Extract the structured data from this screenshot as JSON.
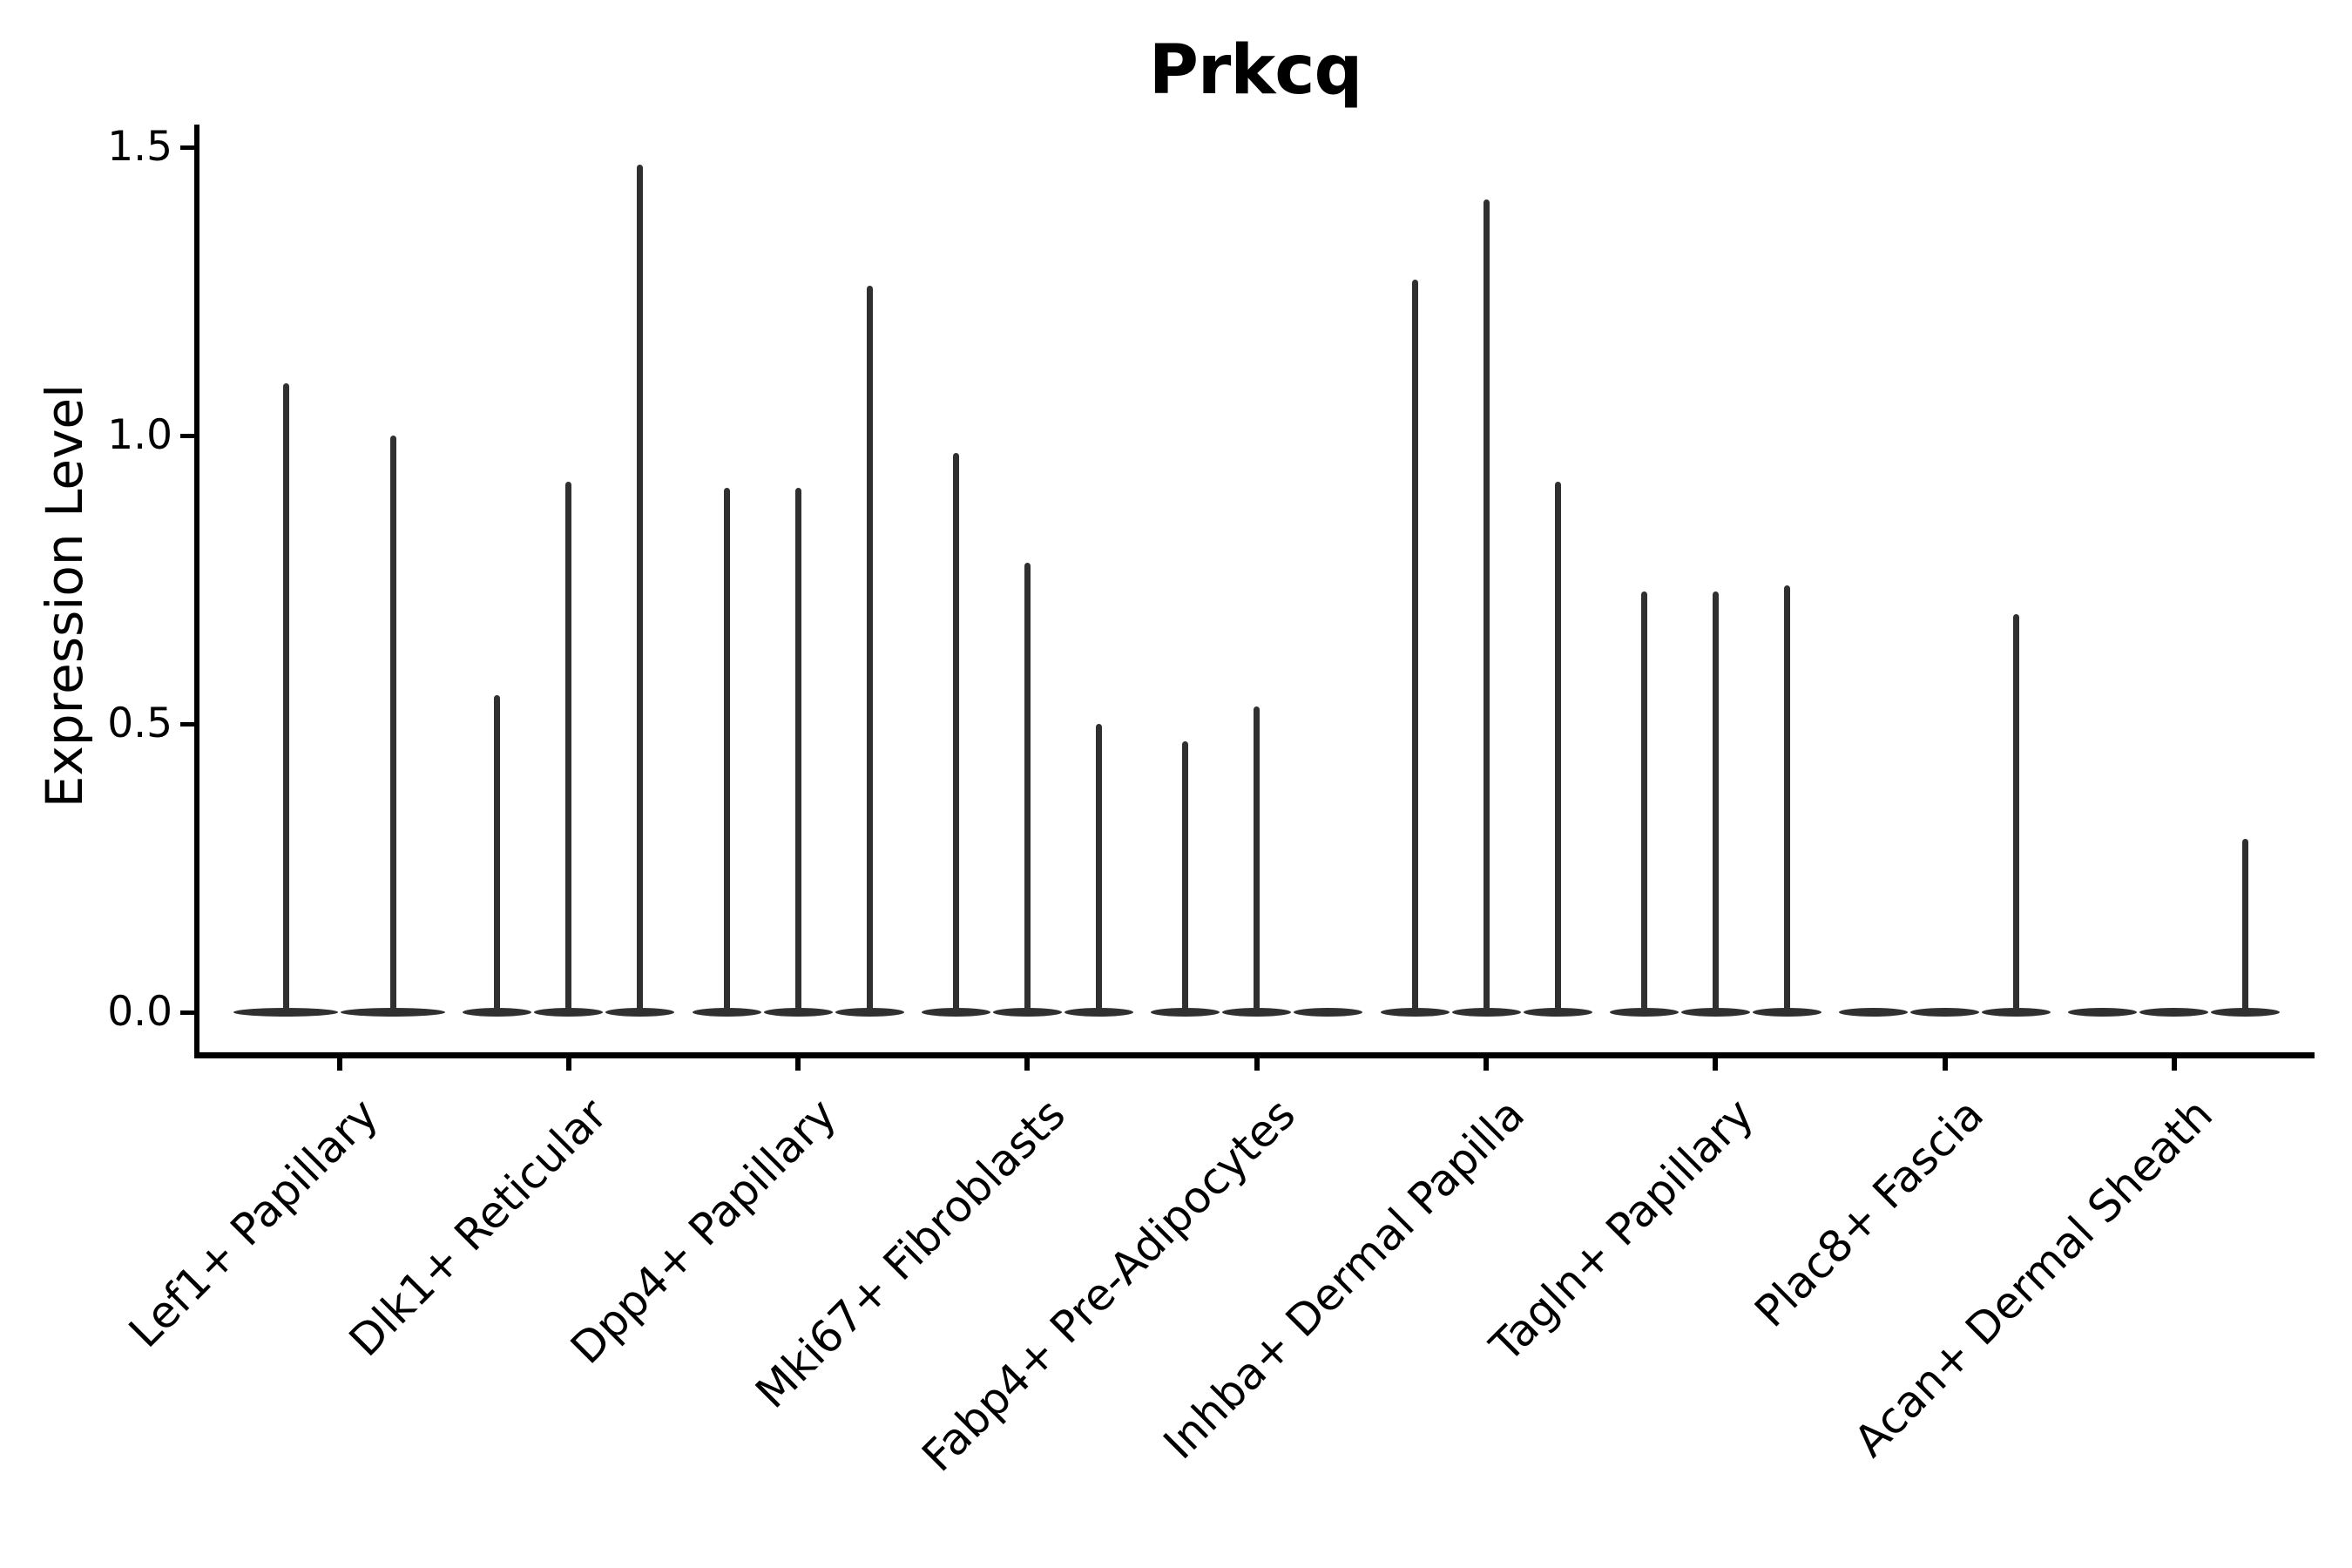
{
  "title": "Prkcq",
  "y_axis": {
    "label": "Expression Level",
    "tick_labels": [
      "0.0",
      "0.5",
      "1.0",
      "1.5"
    ],
    "tick_values": [
      0.0,
      0.5,
      1.0,
      1.5
    ]
  },
  "colors": {
    "violin_stroke": "#303030",
    "axis": "#000000",
    "text": "#000000",
    "background": "#ffffff"
  },
  "chart_data": {
    "type": "violin",
    "title": "Prkcq",
    "xlabel": "",
    "ylabel": "Expression Level",
    "ylim": [
      -0.073,
      1.54
    ],
    "yticks": [
      0.0,
      0.5,
      1.0,
      1.5
    ],
    "grid": false,
    "legend": "none",
    "note": "Narrow spike-shaped violins; most mass at 0 with thin tail to maximum. Value listed is the spike (tail) maximum per violin; 0 means flat violin at baseline.",
    "categories": [
      "Lef1+ Papillary",
      "Dlk1+ Reticular",
      "Dpp4+ Papillary",
      "Mki67+ Fibroblasts",
      "Fabp4+ Pre-Adipocytes",
      "Inhba+ Dermal Papilla",
      "Tagln+ Papillary",
      "Plac8+ Fascia",
      "Acan+ Dermal Sheath"
    ],
    "series": [
      {
        "category": "Lef1+ Papillary",
        "violin_maxima": [
          1.09,
          1.0
        ]
      },
      {
        "category": "Dlk1+ Reticular",
        "violin_maxima": [
          0.55,
          0.92,
          1.47
        ]
      },
      {
        "category": "Dpp4+ Papillary",
        "violin_maxima": [
          0.91,
          0.91,
          1.26
        ]
      },
      {
        "category": "Mki67+ Fibroblasts",
        "violin_maxima": [
          0.97,
          0.78,
          0.5
        ]
      },
      {
        "category": "Fabp4+ Pre-Adipocytes",
        "violin_maxima": [
          0.47,
          0.53,
          0.0
        ]
      },
      {
        "category": "Inhba+ Dermal Papilla",
        "violin_maxima": [
          1.27,
          1.41,
          0.92
        ]
      },
      {
        "category": "Tagln+ Papillary",
        "violin_maxima": [
          0.73,
          0.73,
          0.74
        ]
      },
      {
        "category": "Plac8+ Fascia",
        "violin_maxima": [
          0.0,
          0.0,
          0.69
        ]
      },
      {
        "category": "Acan+ Dermal Sheath",
        "violin_maxima": [
          0.0,
          0.0,
          0.3
        ]
      }
    ]
  }
}
